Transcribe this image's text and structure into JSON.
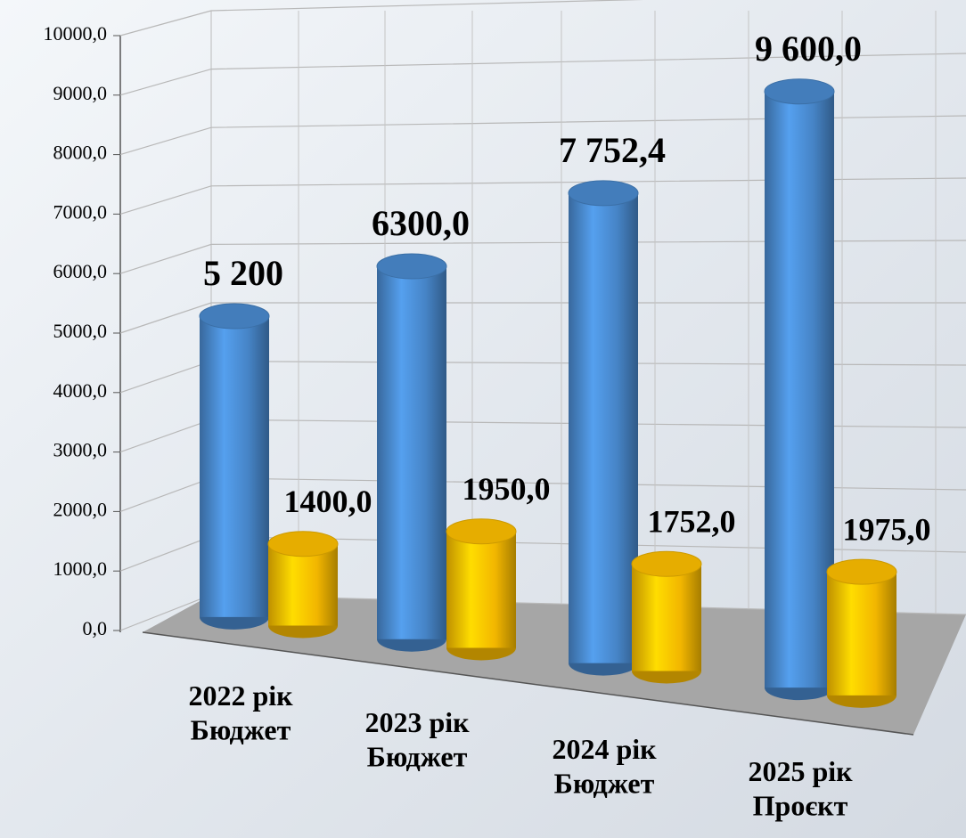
{
  "chart_data": {
    "type": "bar3d",
    "categories": [
      "2022 рік\nБюджет",
      "2023 рік\nБюджет",
      "2024 рік\nБюджет",
      "2025 рік\nПроєкт"
    ],
    "series": [
      {
        "color": "#4a8bd0",
        "values": [
          5200,
          6300,
          7752.4,
          9600
        ],
        "value_labels": [
          "5 200",
          "6300,0",
          "7 752,4",
          "9 600,0"
        ]
      },
      {
        "color": "#ffc000",
        "values": [
          1400,
          1950,
          1752,
          1975
        ],
        "value_labels": [
          "1400,0",
          "1950,0",
          "1752,0",
          "1975,0"
        ]
      }
    ],
    "ylim": [
      0,
      10000
    ],
    "yticks": [
      {
        "value": 0,
        "label": "0,0"
      },
      {
        "value": 1000,
        "label": "1000,0"
      },
      {
        "value": 2000,
        "label": "2000,0"
      },
      {
        "value": 3000,
        "label": "3000,0"
      },
      {
        "value": 4000,
        "label": "4000,0"
      },
      {
        "value": 5000,
        "label": "5000,0"
      },
      {
        "value": 6000,
        "label": "6000,0"
      },
      {
        "value": 7000,
        "label": "7000,0"
      },
      {
        "value": 8000,
        "label": "8000,0"
      },
      {
        "value": 9000,
        "label": "9000,0"
      },
      {
        "value": 10000,
        "label": "10000,0"
      }
    ],
    "grid": true
  }
}
